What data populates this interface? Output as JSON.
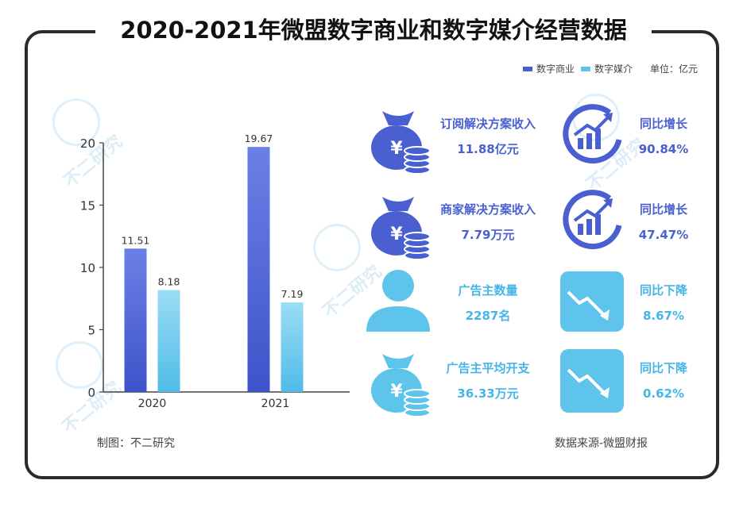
{
  "title": "2020-2021年微盟数字商业和数字媒介经营数据",
  "legend": {
    "series1": "数字商业",
    "series2": "数字媒介",
    "unit": "单位：亿元"
  },
  "colors": {
    "digital_business": "#4a5fd0",
    "digital_media": "#5ec4ec",
    "dark_frame": "#2a2a2a"
  },
  "chart_data": {
    "type": "bar",
    "categories": [
      "2020",
      "2021"
    ],
    "series": [
      {
        "name": "数字商业",
        "values": [
          11.51,
          19.67
        ]
      },
      {
        "name": "数字媒介",
        "values": [
          8.18,
          7.19
        ]
      }
    ],
    "ylim": [
      0,
      20
    ],
    "yticks": [
      0,
      5,
      10,
      15,
      20
    ],
    "data_labels": [
      "11.51",
      "8.18",
      "19.67",
      "7.19"
    ],
    "grid": false,
    "legend_position": "top-right"
  },
  "kpis": [
    {
      "label": "订阅解决方案收入",
      "value": "11.88亿元",
      "trend_label": "同比增长",
      "trend_value": "90.84%",
      "icon": "money-bag-icon",
      "trend_icon": "trend-up-icon"
    },
    {
      "label": "商家解决方案收入",
      "value": "7.79万元",
      "trend_label": "同比增长",
      "trend_value": "47.47%",
      "icon": "money-bag-icon",
      "trend_icon": "trend-up-icon"
    },
    {
      "label": "广告主数量",
      "value": "2287名",
      "trend_label": "同比下降",
      "trend_value": "8.67%",
      "icon": "person-icon",
      "trend_icon": "trend-down-icon"
    },
    {
      "label": "广告主平均开支",
      "value": "36.33万元",
      "trend_label": "同比下降",
      "trend_value": "0.62%",
      "icon": "money-bag-icon",
      "trend_icon": "trend-down-icon"
    }
  ],
  "footer": {
    "left": "制图：不二研究",
    "right": "数据来源-微盟财报"
  },
  "watermark": "不二研究"
}
